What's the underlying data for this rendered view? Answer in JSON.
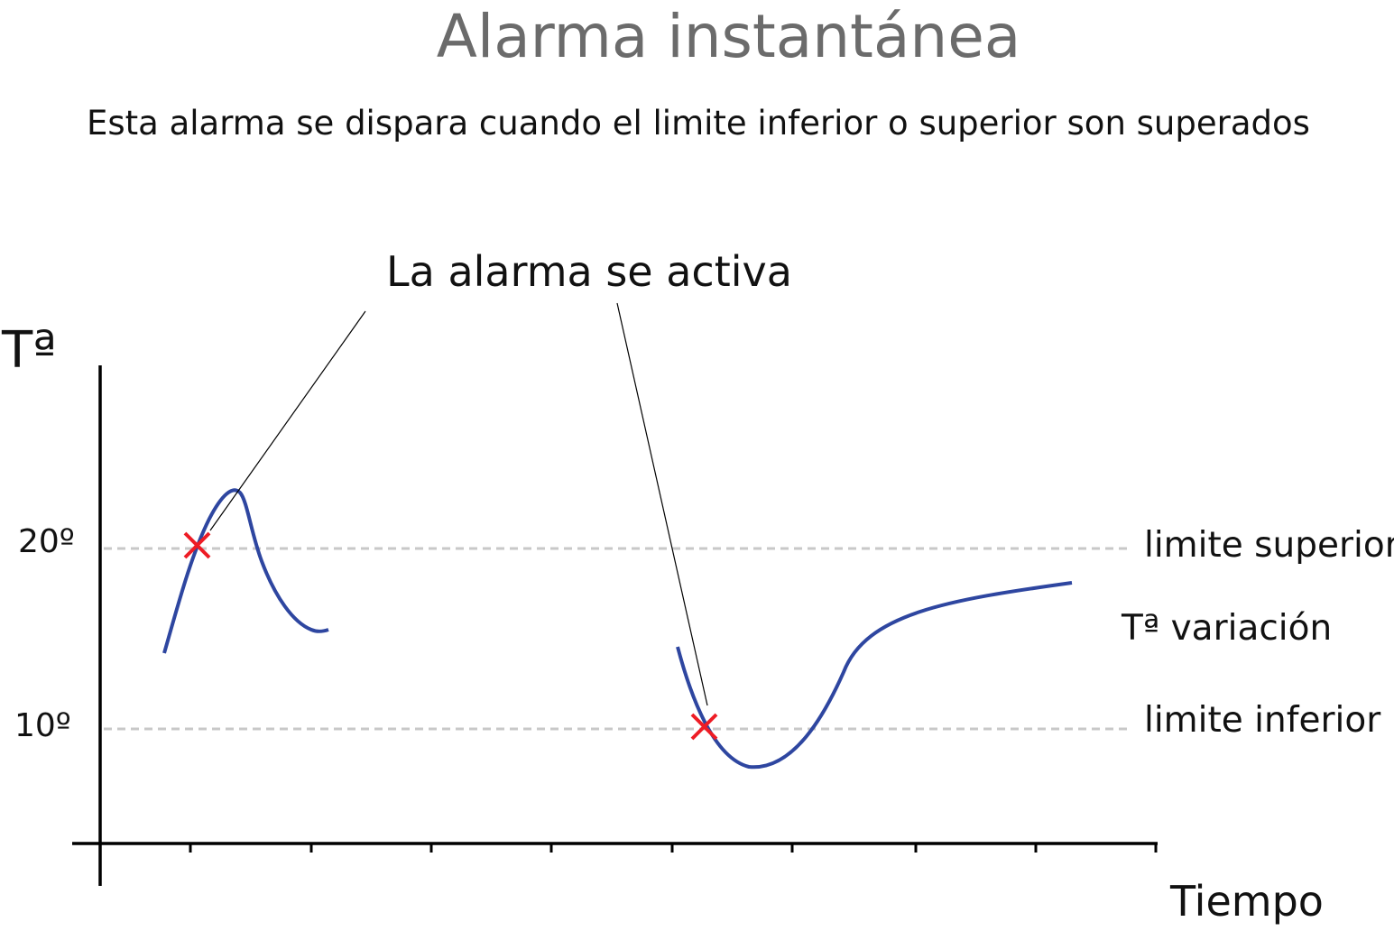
{
  "title": "Alarma instantánea",
  "subtitle": "Esta alarma se dispara cuando el limite inferior o superior son superados",
  "callout": "La alarma se activa",
  "axes": {
    "y_label": "Tª",
    "x_label": "Tiempo",
    "y_ticks": [
      "20º",
      "10º"
    ]
  },
  "limits": {
    "upper": "limite superior",
    "lower": "limite inferior",
    "variation": "Tª variación"
  },
  "colors": {
    "curve": "#2e46a0",
    "marker": "#ee1c25",
    "limit_line": "#c8c8c8",
    "title": "#6b6b6b"
  }
}
